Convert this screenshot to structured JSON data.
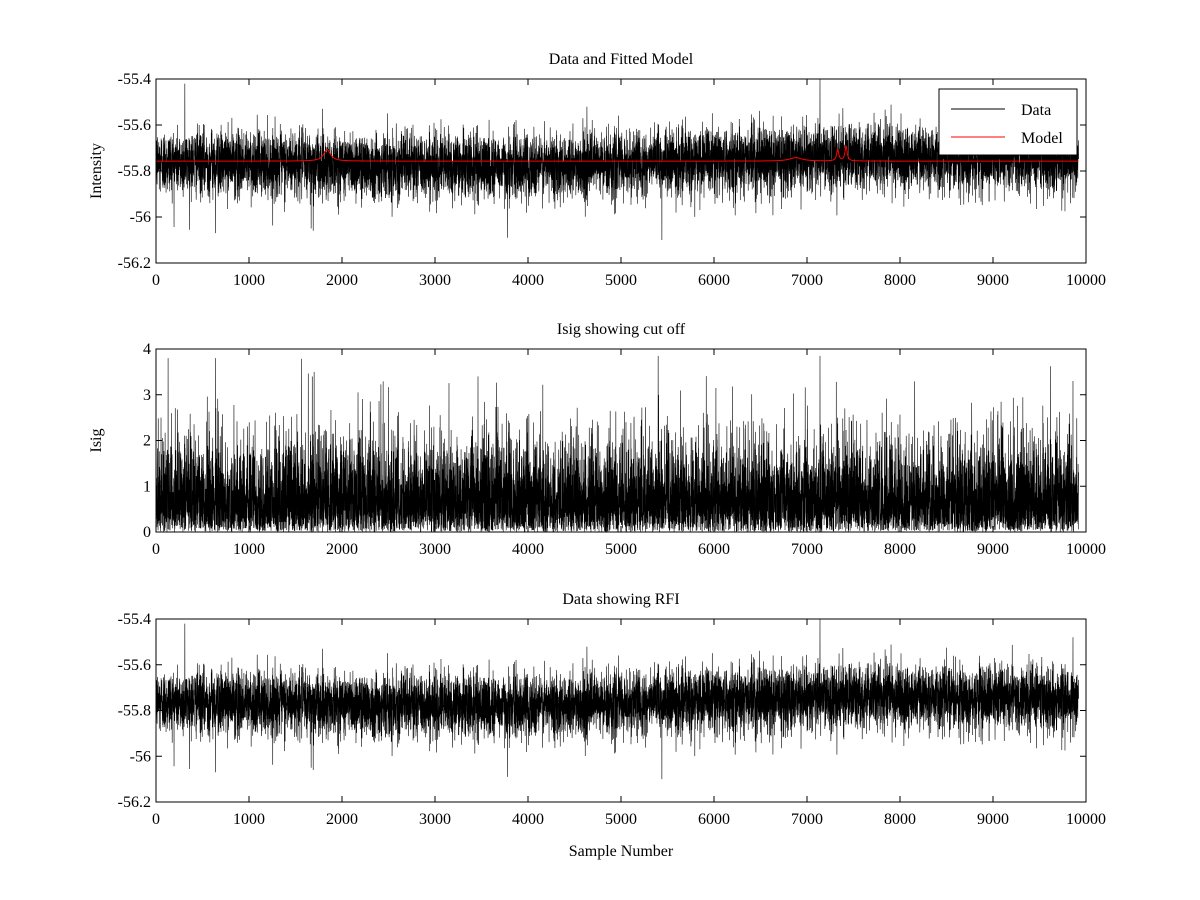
{
  "chart_data": [
    {
      "type": "line",
      "title": "Data and Fitted Model",
      "xlabel": "",
      "ylabel": "Intensity",
      "xlim": [
        0,
        10000
      ],
      "ylim": [
        -56.2,
        -55.4
      ],
      "xticks": [
        0,
        1000,
        2000,
        3000,
        4000,
        5000,
        6000,
        7000,
        8000,
        9000,
        10000
      ],
      "yticks": [
        -56.2,
        -56,
        -55.8,
        -55.6,
        -55.4
      ],
      "ytick_labels": [
        "-56.2",
        "-56",
        "-55.8",
        "-55.6",
        "-55.4"
      ],
      "grid": false,
      "legend": {
        "position": "top-right",
        "entries": [
          {
            "label": "Data",
            "color": "#000000"
          },
          {
            "label": "Model",
            "color": "#ff0000"
          }
        ]
      },
      "series": [
        {
          "name": "Data",
          "color": "#000000",
          "kind": "noise",
          "x_range": [
            0,
            9920
          ],
          "n_points": 9920,
          "baseline": -55.755,
          "noise_sd": 0.07,
          "drift": [
            [
              0,
              -55.76
            ],
            [
              1800,
              -55.77
            ],
            [
              3800,
              -55.78
            ],
            [
              5200,
              -55.77
            ],
            [
              7000,
              -55.74
            ],
            [
              8600,
              -55.74
            ],
            [
              9920,
              -55.75
            ]
          ],
          "spikes": [
            {
              "x": 1668,
              "value": -56.05
            },
            {
              "x": 1690,
              "value": -56.06
            },
            {
              "x": 640,
              "value": -56.07
            },
            {
              "x": 5440,
              "value": -56.1
            },
            {
              "x": 3780,
              "value": -56.09
            },
            {
              "x": 7140,
              "value": -55.4
            },
            {
              "x": 310,
              "value": -55.42
            },
            {
              "x": 9860,
              "value": -55.48
            }
          ]
        },
        {
          "name": "Model",
          "color": "#ff0000",
          "kind": "model",
          "x_range": [
            0,
            9920
          ],
          "baseline": -55.757,
          "peaks": [
            {
              "x": 1840,
              "height": 0.05,
              "width": 45
            },
            {
              "x": 6880,
              "height": 0.015,
              "width": 80
            },
            {
              "x": 7330,
              "height": 0.05,
              "width": 14
            },
            {
              "x": 7420,
              "height": 0.065,
              "width": 14
            }
          ]
        }
      ]
    },
    {
      "type": "line",
      "title": "Isig showing cut off",
      "xlabel": "",
      "ylabel": "Isig",
      "xlim": [
        0,
        10000
      ],
      "ylim": [
        0,
        4
      ],
      "xticks": [
        0,
        1000,
        2000,
        3000,
        4000,
        5000,
        6000,
        7000,
        8000,
        9000,
        10000
      ],
      "yticks": [
        0,
        1,
        2,
        3,
        4
      ],
      "ytick_labels": [
        "0",
        "1",
        "2",
        "3",
        "4"
      ],
      "grid": false,
      "series": [
        {
          "name": "Isig",
          "color": "#000000",
          "kind": "abs-noise",
          "x_range": [
            0,
            9920
          ],
          "n_points": 9920,
          "noise_sd": 0.95,
          "spikes": [
            {
              "x": 1700,
              "value": 3.5
            },
            {
              "x": 1680,
              "value": 3.4
            },
            {
              "x": 130,
              "value": 3.8
            },
            {
              "x": 640,
              "value": 3.8
            },
            {
              "x": 5400,
              "value": 3.85
            },
            {
              "x": 7140,
              "value": 3.85
            },
            {
              "x": 9860,
              "value": 3.3
            }
          ]
        }
      ]
    },
    {
      "type": "line",
      "title": "Data showing RFI",
      "xlabel": "Sample Number",
      "ylabel": "",
      "xlim": [
        0,
        10000
      ],
      "ylim": [
        -56.2,
        -55.4
      ],
      "xticks": [
        0,
        1000,
        2000,
        3000,
        4000,
        5000,
        6000,
        7000,
        8000,
        9000,
        10000
      ],
      "yticks": [
        -56.2,
        -56,
        -55.8,
        -55.6,
        -55.4
      ],
      "ytick_labels": [
        "-56.2",
        "-56",
        "-55.8",
        "-55.6",
        "-55.4"
      ],
      "grid": false,
      "series": [
        {
          "name": "Data",
          "color": "#000000",
          "kind": "noise",
          "x_range": [
            0,
            9920
          ],
          "n_points": 9920,
          "baseline": -55.755,
          "noise_sd": 0.07,
          "drift": [
            [
              0,
              -55.76
            ],
            [
              1800,
              -55.77
            ],
            [
              3800,
              -55.78
            ],
            [
              5200,
              -55.77
            ],
            [
              7000,
              -55.74
            ],
            [
              8600,
              -55.74
            ],
            [
              9920,
              -55.75
            ]
          ],
          "spikes": [
            {
              "x": 1668,
              "value": -56.05
            },
            {
              "x": 1690,
              "value": -56.06
            },
            {
              "x": 640,
              "value": -56.07
            },
            {
              "x": 5440,
              "value": -56.1
            },
            {
              "x": 3780,
              "value": -56.09
            },
            {
              "x": 7140,
              "value": -55.4
            },
            {
              "x": 310,
              "value": -55.42
            },
            {
              "x": 9860,
              "value": -55.48
            }
          ]
        }
      ]
    }
  ]
}
